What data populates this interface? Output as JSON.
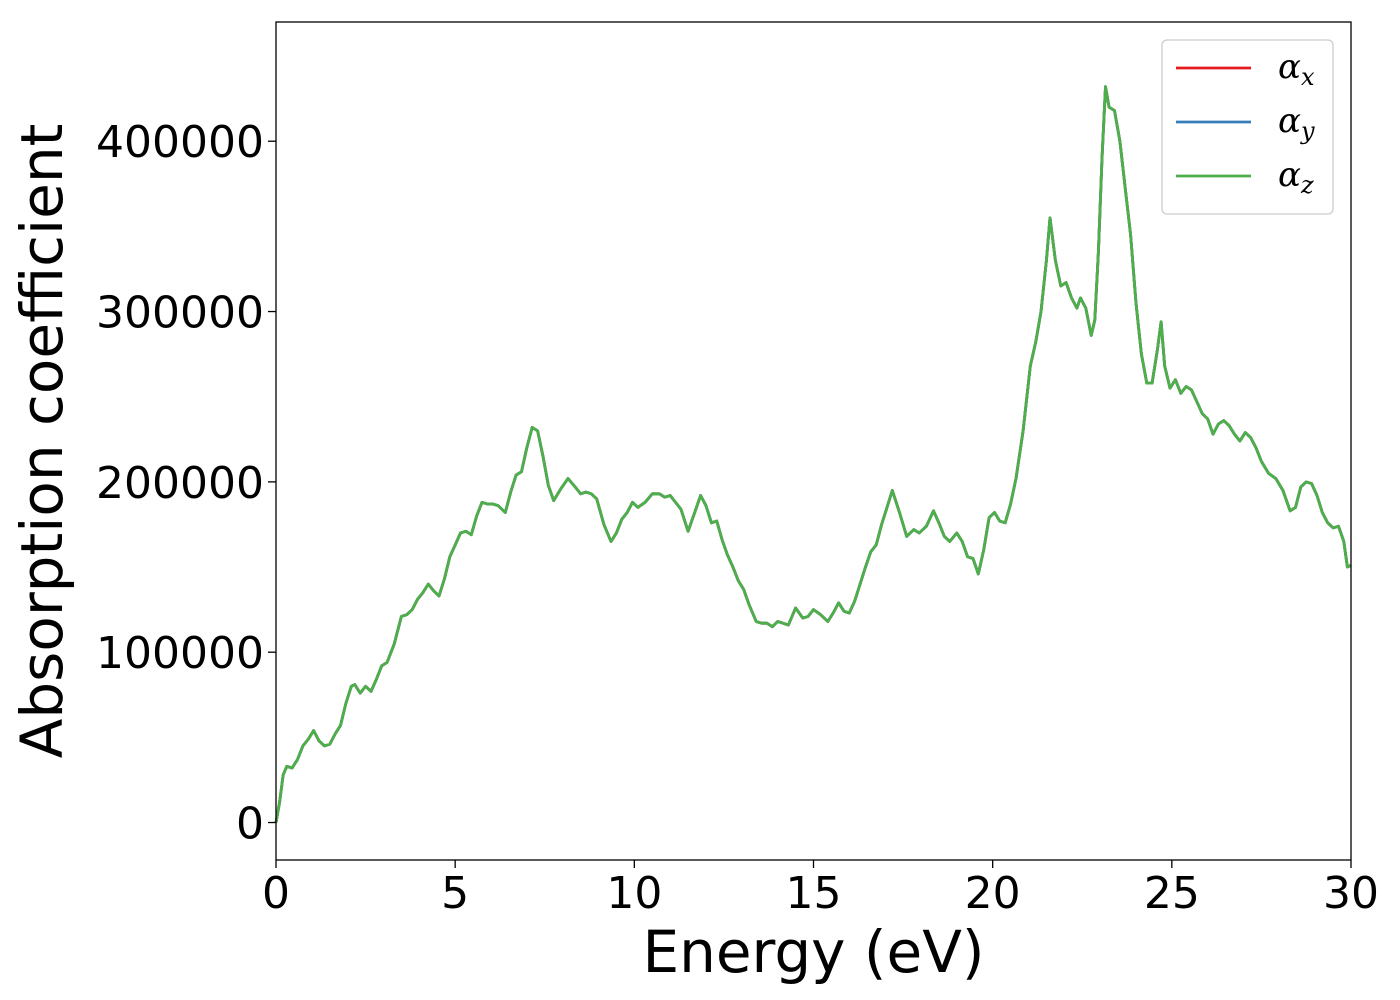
{
  "chart_data": {
    "type": "line",
    "xlabel": "Energy (eV)",
    "ylabel": "Absorption coefficient",
    "xlim": [
      0,
      30
    ],
    "ylim": [
      -22000,
      470000
    ],
    "xticks": [
      0,
      5,
      10,
      15,
      20,
      25,
      30
    ],
    "yticks": [
      0,
      100000,
      200000,
      300000,
      400000
    ],
    "grid": false,
    "legend": "top-right",
    "series": [
      {
        "name": "α",
        "subscript": "x",
        "color": "#e41a1c"
      },
      {
        "name": "α",
        "subscript": "y",
        "color": "#377eb8"
      },
      {
        "name": "α",
        "subscript": "z",
        "color": "#4daf4a"
      }
    ],
    "x": [
      0,
      0.1,
      0.2,
      0.3,
      0.45,
      0.6,
      0.75,
      0.9,
      1.05,
      1.2,
      1.35,
      1.5,
      1.65,
      1.8,
      1.95,
      2.1,
      2.2,
      2.35,
      2.5,
      2.65,
      2.8,
      2.95,
      3.1,
      3.3,
      3.5,
      3.65,
      3.8,
      3.95,
      4.1,
      4.25,
      4.4,
      4.55,
      4.7,
      4.85,
      5.0,
      5.15,
      5.3,
      5.45,
      5.6,
      5.75,
      5.9,
      6.05,
      6.2,
      6.4,
      6.55,
      6.7,
      6.85,
      7.0,
      7.15,
      7.3,
      7.45,
      7.6,
      7.75,
      7.95,
      8.15,
      8.35,
      8.5,
      8.65,
      8.8,
      8.95,
      9.15,
      9.35,
      9.5,
      9.65,
      9.8,
      9.95,
      10.1,
      10.3,
      10.5,
      10.7,
      10.85,
      11.0,
      11.15,
      11.3,
      11.5,
      11.7,
      11.85,
      12.0,
      12.15,
      12.3,
      12.45,
      12.6,
      12.75,
      12.9,
      13.05,
      13.2,
      13.4,
      13.55,
      13.7,
      13.85,
      14.0,
      14.15,
      14.3,
      14.5,
      14.7,
      14.85,
      15.0,
      15.2,
      15.4,
      15.55,
      15.7,
      15.85,
      16.0,
      16.15,
      16.3,
      16.45,
      16.6,
      16.75,
      16.9,
      17.05,
      17.2,
      17.4,
      17.6,
      17.8,
      17.95,
      18.15,
      18.35,
      18.5,
      18.65,
      18.8,
      19.0,
      19.15,
      19.3,
      19.45,
      19.6,
      19.75,
      19.9,
      20.05,
      20.2,
      20.35,
      20.5,
      20.65,
      20.85,
      21.05,
      21.2,
      21.35,
      21.5,
      21.6,
      21.75,
      21.9,
      22.05,
      22.2,
      22.35,
      22.45,
      22.6,
      22.75,
      22.85,
      22.95,
      23.05,
      23.15,
      23.25,
      23.4,
      23.55,
      23.7,
      23.85,
      24.0,
      24.15,
      24.3,
      24.45,
      24.6,
      24.7,
      24.8,
      24.95,
      25.1,
      25.25,
      25.4,
      25.55,
      25.7,
      25.85,
      26.0,
      26.15,
      26.3,
      26.45,
      26.6,
      26.75,
      26.9,
      27.05,
      27.2,
      27.35,
      27.5,
      27.7,
      27.9,
      28.1,
      28.3,
      28.45,
      28.6,
      28.75,
      28.9,
      29.05,
      29.2,
      29.35,
      29.5,
      29.65,
      29.8,
      29.9,
      30.0
    ],
    "y": [
      0,
      12000,
      28000,
      33000,
      32000,
      37000,
      45000,
      49000,
      54000,
      48000,
      45000,
      46000,
      52000,
      57000,
      70000,
      80000,
      81000,
      76000,
      80000,
      77000,
      84000,
      92000,
      94000,
      105000,
      121000,
      122000,
      125000,
      131000,
      135000,
      140000,
      136000,
      133000,
      143000,
      156000,
      163000,
      170000,
      171000,
      169000,
      180000,
      188000,
      187000,
      187000,
      186000,
      182000,
      194000,
      204000,
      206000,
      220000,
      232000,
      230000,
      215000,
      198000,
      189000,
      196000,
      202000,
      197000,
      193000,
      194000,
      193000,
      190000,
      175000,
      165000,
      170000,
      178000,
      182000,
      188000,
      185000,
      188000,
      193000,
      193000,
      191000,
      192000,
      188000,
      184000,
      171000,
      183000,
      192000,
      186000,
      176000,
      177000,
      166000,
      157000,
      150000,
      142000,
      137000,
      128000,
      118000,
      117000,
      117000,
      115000,
      118000,
      117000,
      116000,
      126000,
      120000,
      121000,
      125000,
      122000,
      118000,
      123000,
      129000,
      124000,
      123000,
      130000,
      140000,
      150000,
      159000,
      163000,
      175000,
      185000,
      195000,
      182000,
      168000,
      172000,
      170000,
      174000,
      183000,
      176000,
      168000,
      165000,
      170000,
      165000,
      156000,
      155000,
      146000,
      160000,
      179000,
      182000,
      177000,
      176000,
      187000,
      202000,
      230000,
      268000,
      282000,
      300000,
      330000,
      355000,
      330000,
      315000,
      317000,
      308000,
      302000,
      308000,
      302000,
      286000,
      295000,
      335000,
      390000,
      432000,
      420000,
      418000,
      400000,
      372000,
      345000,
      305000,
      275000,
      258000,
      258000,
      278000,
      294000,
      268000,
      255000,
      260000,
      252000,
      256000,
      254000,
      247000,
      240000,
      237000,
      228000,
      234000,
      236000,
      233000,
      228000,
      224000,
      229000,
      226000,
      220000,
      212000,
      205000,
      202000,
      195000,
      183000,
      185000,
      197000,
      200000,
      199000,
      192000,
      182000,
      176000,
      173000,
      174000,
      165000,
      150000,
      151000
    ]
  }
}
